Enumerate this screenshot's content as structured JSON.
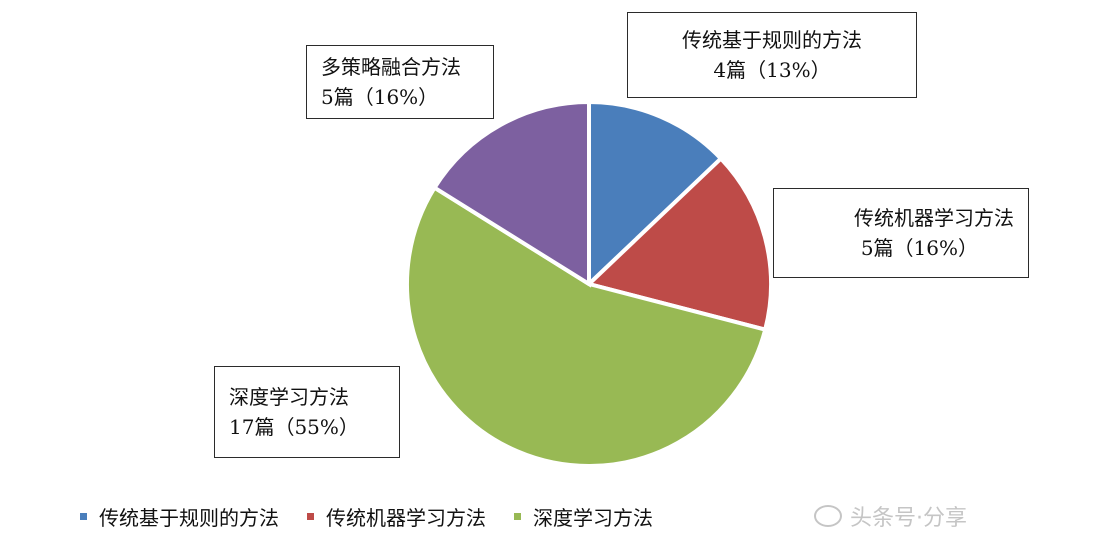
{
  "chart_data": {
    "type": "pie",
    "title": "",
    "start_angle_deg": 0,
    "direction": "clockwise",
    "slices": [
      {
        "label": "传统基于规则的方法",
        "value": 4,
        "percent_label": "4篇（13%）",
        "color": "#4a7ebb"
      },
      {
        "label": "传统机器学习方法",
        "value": 5,
        "percent_label": "5篇（16%）",
        "color": "#be4b48"
      },
      {
        "label": "深度学习方法",
        "value": 17,
        "percent_label": "17篇（55%）",
        "color": "#98b954"
      },
      {
        "label": "多策略融合方法",
        "value": 5,
        "percent_label": "5篇（16%）",
        "color": "#7d60a0"
      }
    ],
    "legend_position": "bottom"
  },
  "watermark": {
    "text": "头条号·分享"
  }
}
